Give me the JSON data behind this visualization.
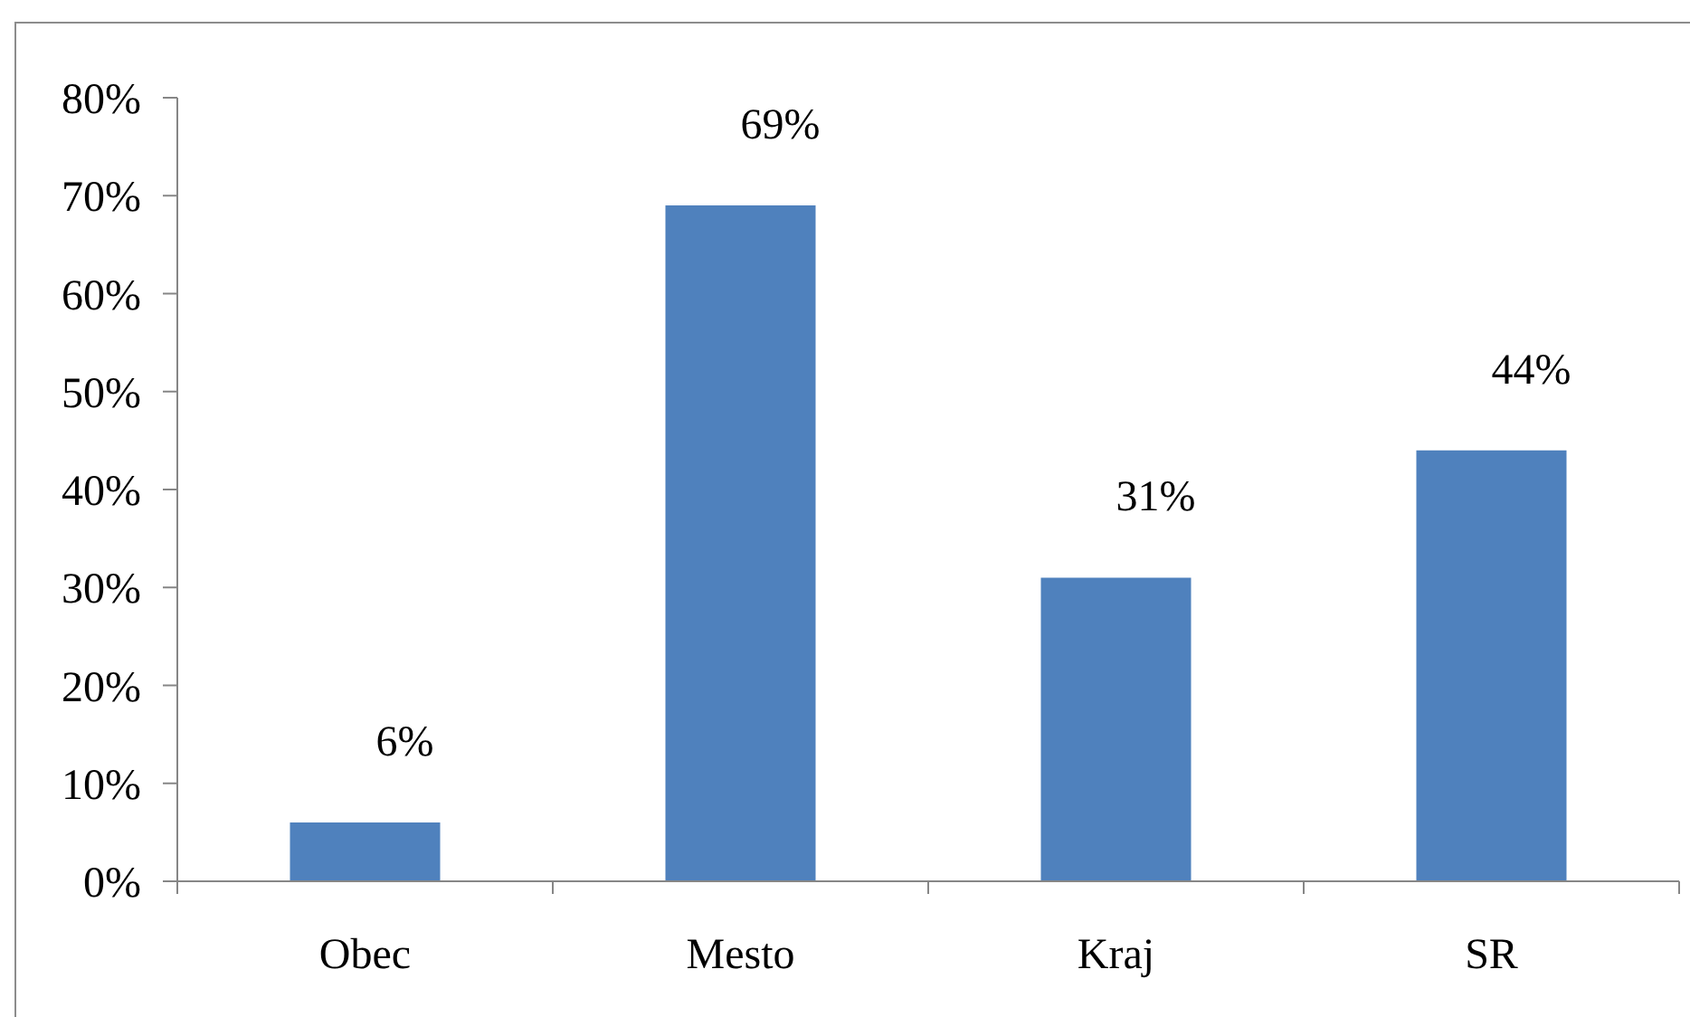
{
  "chart_data": {
    "type": "bar",
    "categories": [
      "Obec",
      "Mesto",
      "Kraj",
      "SR"
    ],
    "values": [
      6,
      69,
      31,
      44
    ],
    "color": "#4f81bd",
    "value_labels": [
      "6%",
      "69%",
      "31%",
      "44%"
    ],
    "ylim": [
      0,
      80
    ],
    "yticks": [
      {
        "value": 0,
        "label": "0%"
      },
      {
        "value": 10,
        "label": "10%"
      },
      {
        "value": 20,
        "label": "20%"
      },
      {
        "value": 30,
        "label": "30%"
      },
      {
        "value": 40,
        "label": "40%"
      },
      {
        "value": 50,
        "label": "50%"
      },
      {
        "value": 60,
        "label": "60%"
      },
      {
        "value": 70,
        "label": "70%"
      },
      {
        "value": 80,
        "label": "80%"
      }
    ]
  }
}
